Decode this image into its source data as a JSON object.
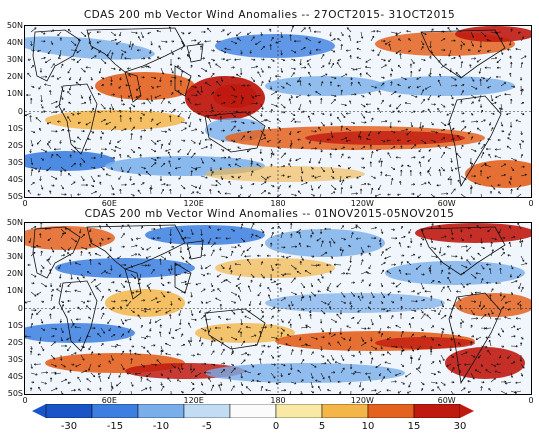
{
  "panels": [
    {
      "title": "CDAS 200 mb Vector Wind Anomalies -- 27OCT2015- 31OCT2015",
      "lat_labels": [
        "50N",
        "40N",
        "30N",
        "20N",
        "10N",
        "0",
        "10S",
        "20S",
        "30S",
        "40S",
        "50S"
      ],
      "lon_labels": [
        "0",
        "60E",
        "120E",
        "180",
        "120W",
        "60W",
        "0"
      ]
    },
    {
      "title": "CDAS 200 mb Vector Wind Anomalies -- 01NOV2015-05NOV2015",
      "lat_labels": [
        "50N",
        "40N",
        "30N",
        "20N",
        "10N",
        "0",
        "10S",
        "20S",
        "30S",
        "40S",
        "50S"
      ],
      "lon_labels": [
        "0",
        "60E",
        "120E",
        "180",
        "120W",
        "60W",
        "0"
      ]
    }
  ],
  "colorbar": {
    "labels": [
      "-30",
      "-15",
      "-10",
      "-5",
      "0",
      "5",
      "10",
      "15",
      "30"
    ],
    "colors": [
      "#1a55c8",
      "#3c7fe0",
      "#78aeea",
      "#c2dcf4",
      "#fbfbfb",
      "#f8eaa4",
      "#f4b648",
      "#e4621e",
      "#c01a10"
    ]
  }
}
